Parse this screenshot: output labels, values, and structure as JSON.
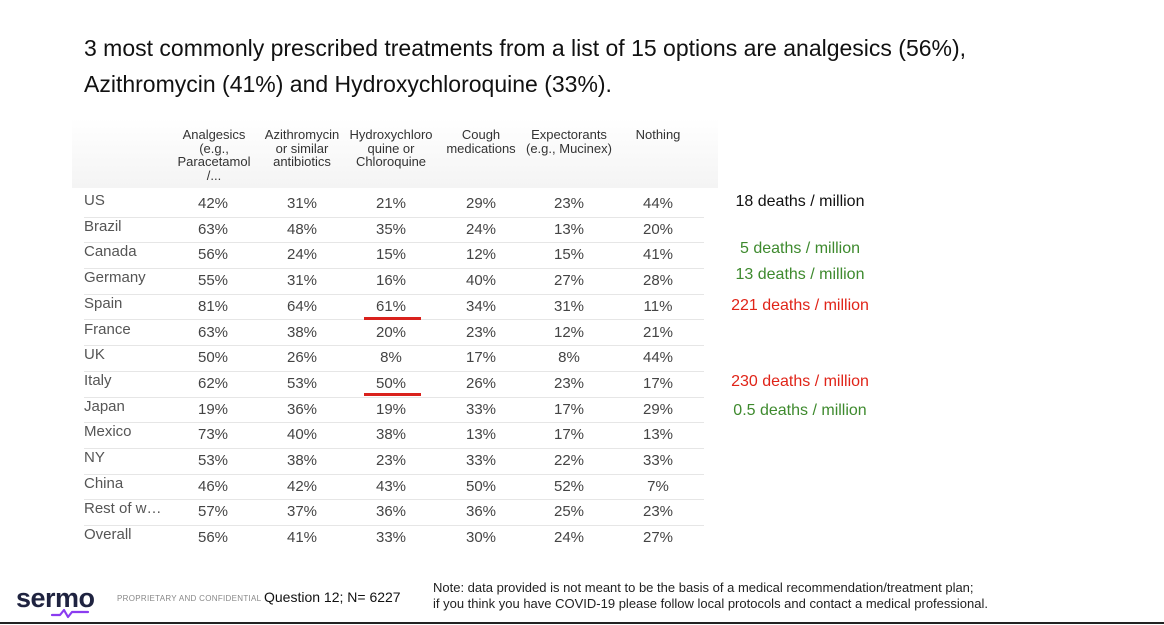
{
  "title": {
    "line1": "3 most commonly prescribed treatments from a list of 15 options are analgesics (56%),",
    "line2": "Azithromycin (41%) and Hydroxychloroquine (33%)."
  },
  "table": {
    "columns": [
      "Analgesics\n(e.g.,\nParacetamol\n/...",
      "Azithromycin\nor similar\nantibiotics",
      "Hydroxychloro\nquine or\nChloroquine",
      "Cough\nmedications",
      "Expectorants\n(e.g., Mucinex)",
      "Nothing"
    ],
    "rows": [
      {
        "label": "US",
        "values": [
          "42%",
          "31%",
          "21%",
          "29%",
          "23%",
          "44%"
        ]
      },
      {
        "label": "Brazil",
        "values": [
          "63%",
          "48%",
          "35%",
          "24%",
          "13%",
          "20%"
        ]
      },
      {
        "label": "Canada",
        "values": [
          "56%",
          "24%",
          "15%",
          "12%",
          "15%",
          "41%"
        ]
      },
      {
        "label": "Germany",
        "values": [
          "55%",
          "31%",
          "16%",
          "40%",
          "27%",
          "28%"
        ]
      },
      {
        "label": "Spain",
        "values": [
          "81%",
          "64%",
          "61%",
          "34%",
          "31%",
          "11%"
        ]
      },
      {
        "label": "France",
        "values": [
          "63%",
          "38%",
          "20%",
          "23%",
          "12%",
          "21%"
        ]
      },
      {
        "label": "UK",
        "values": [
          "50%",
          "26%",
          "8%",
          "17%",
          "8%",
          "44%"
        ]
      },
      {
        "label": "Italy",
        "values": [
          "62%",
          "53%",
          "50%",
          "26%",
          "23%",
          "17%"
        ]
      },
      {
        "label": "Japan",
        "values": [
          "19%",
          "36%",
          "19%",
          "33%",
          "17%",
          "29%"
        ]
      },
      {
        "label": "Mexico",
        "values": [
          "73%",
          "40%",
          "38%",
          "13%",
          "17%",
          "13%"
        ]
      },
      {
        "label": "NY",
        "values": [
          "53%",
          "38%",
          "23%",
          "33%",
          "22%",
          "33%"
        ]
      },
      {
        "label": "China",
        "values": [
          "46%",
          "42%",
          "43%",
          "50%",
          "52%",
          "7%"
        ]
      },
      {
        "label": "Rest of w…",
        "values": [
          "57%",
          "37%",
          "36%",
          "36%",
          "25%",
          "23%"
        ]
      },
      {
        "label": "Overall",
        "values": [
          "56%",
          "41%",
          "33%",
          "30%",
          "24%",
          "27%"
        ]
      }
    ]
  },
  "deaths": [
    {
      "row": "US",
      "text": "18 deaths / million",
      "color": "#111111"
    },
    {
      "row": "Canada",
      "text": "5 deaths / million",
      "color": "#3e8a2e"
    },
    {
      "row": "Germany",
      "text": "13 deaths / million",
      "color": "#3e8a2e"
    },
    {
      "row": "Spain",
      "text": "221 deaths / million",
      "color": "#e02418"
    },
    {
      "row": "Italy",
      "text": "230 deaths / million",
      "color": "#e02418"
    },
    {
      "row": "Japan",
      "text": "0.5 deaths / million",
      "color": "#3e8a2e"
    }
  ],
  "footer": {
    "logo": "sermo",
    "confidential": "PROPRIETARY AND CONFIDENTIAL",
    "question": "Question 12; N= 6227",
    "note_line1": "Note: data provided is not meant to be the basis of a medical recommendation/treatment plan;",
    "note_line2": "if you think you have COVID-19 please follow local protocols and contact a medical professional."
  },
  "colors": {
    "highlight_red": "#d9211c",
    "green": "#3e8a2e",
    "red": "#e02418"
  }
}
